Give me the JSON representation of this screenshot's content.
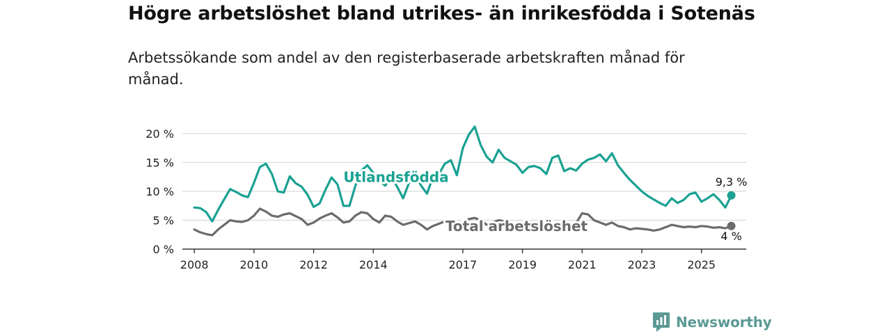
{
  "header": {
    "title": "Högre arbetslöshet bland utrikes- än inrikesfödda i Sotenäs",
    "subtitle": "Arbetssökande som andel av den registerbaserade arbetskraften månad för månad."
  },
  "brand": {
    "name": "Newsworthy",
    "icon": "newsworthy-logo-icon",
    "color": "#5b9a94"
  },
  "chart_data": {
    "type": "line",
    "title": "Högre arbetslöshet bland utrikes- än inrikesfödda i Sotenäs",
    "subtitle": "Arbetssökande som andel av den registerbaserade arbetskraften månad för månad.",
    "xlabel": "",
    "ylabel": "",
    "x_range": [
      2007.6,
      2026.5
    ],
    "ylim": [
      0,
      22
    ],
    "y_ticks": [
      0,
      5,
      10,
      15,
      20
    ],
    "y_tick_labels": [
      "0 %",
      "5 %",
      "10 %",
      "15 %",
      "20 %"
    ],
    "x_ticks": [
      2008,
      2010,
      2012,
      2014,
      2017,
      2019,
      2021,
      2023,
      2025
    ],
    "x_tick_labels": [
      "2008",
      "2010",
      "2012",
      "2014",
      "2017",
      "2019",
      "2021",
      "2023",
      "2025"
    ],
    "grid": true,
    "series": [
      {
        "name": "Utlandsfödda",
        "color": "#1aa192",
        "end_label": "9,3 %",
        "label_at": [
          2013.0,
          12.5
        ],
        "x": [
          2008.0,
          2008.2,
          2008.4,
          2008.6,
          2008.8,
          2009.0,
          2009.2,
          2009.4,
          2009.6,
          2009.8,
          2010.0,
          2010.2,
          2010.4,
          2010.6,
          2010.8,
          2011.0,
          2011.2,
          2011.4,
          2011.6,
          2011.8,
          2012.0,
          2012.2,
          2012.4,
          2012.6,
          2012.8,
          2013.0,
          2013.2,
          2013.4,
          2013.6,
          2013.8,
          2014.0,
          2014.2,
          2014.4,
          2014.6,
          2014.8,
          2015.0,
          2015.2,
          2015.4,
          2015.6,
          2015.8,
          2016.0,
          2016.2,
          2016.4,
          2016.6,
          2016.8,
          2017.0,
          2017.2,
          2017.4,
          2017.6,
          2017.8,
          2018.0,
          2018.2,
          2018.4,
          2018.6,
          2018.8,
          2019.0,
          2019.2,
          2019.4,
          2019.6,
          2019.8,
          2020.0,
          2020.2,
          2020.4,
          2020.6,
          2020.8,
          2021.0,
          2021.2,
          2021.4,
          2021.6,
          2021.8,
          2022.0,
          2022.2,
          2022.4,
          2022.6,
          2022.8,
          2023.0,
          2023.2,
          2023.4,
          2023.6,
          2023.8,
          2024.0,
          2024.2,
          2024.4,
          2024.6,
          2024.8,
          2025.0,
          2025.2,
          2025.4,
          2025.6,
          2025.8,
          2026.0
        ],
        "y": [
          7.2,
          7.1,
          6.4,
          4.8,
          6.8,
          8.6,
          10.4,
          9.9,
          9.3,
          9.0,
          11.5,
          14.2,
          14.8,
          13.0,
          10.0,
          9.8,
          12.6,
          11.4,
          10.8,
          9.4,
          7.3,
          7.9,
          10.3,
          12.4,
          11.2,
          7.5,
          7.5,
          11.0,
          13.6,
          14.5,
          13.2,
          11.8,
          11.0,
          12.5,
          10.8,
          8.8,
          11.5,
          13.0,
          11.0,
          9.6,
          12.5,
          13.0,
          14.8,
          15.4,
          12.8,
          17.5,
          19.8,
          21.2,
          18.0,
          16.0,
          15.0,
          17.2,
          15.8,
          15.2,
          14.6,
          13.2,
          14.2,
          14.4,
          14.0,
          13.0,
          15.8,
          16.2,
          13.5,
          14.0,
          13.6,
          14.8,
          15.5,
          15.8,
          16.4,
          15.2,
          16.6,
          14.5,
          13.2,
          12.0,
          11.0,
          10.0,
          9.2,
          8.6,
          8.0,
          7.5,
          8.8,
          8.0,
          8.5,
          9.5,
          9.8,
          8.2,
          8.8,
          9.5,
          8.5,
          7.2,
          9.3
        ]
      },
      {
        "name": "Total arbetslöshet",
        "color": "#6b6b6b",
        "end_label": "4 %",
        "label_at": [
          2018.8,
          4.0
        ],
        "x": [
          2008.0,
          2008.2,
          2008.4,
          2008.6,
          2008.8,
          2009.0,
          2009.2,
          2009.4,
          2009.6,
          2009.8,
          2010.0,
          2010.2,
          2010.4,
          2010.6,
          2010.8,
          2011.0,
          2011.2,
          2011.4,
          2011.6,
          2011.8,
          2012.0,
          2012.2,
          2012.4,
          2012.6,
          2012.8,
          2013.0,
          2013.2,
          2013.4,
          2013.6,
          2013.8,
          2014.0,
          2014.2,
          2014.4,
          2014.6,
          2014.8,
          2015.0,
          2015.2,
          2015.4,
          2015.6,
          2015.8,
          2016.0,
          2016.2,
          2016.4,
          2016.6,
          2016.8,
          2017.0,
          2017.2,
          2017.4,
          2017.6,
          2017.8,
          2018.0,
          2018.2,
          2018.4,
          2018.6,
          2018.8,
          2019.0,
          2019.2,
          2019.4,
          2019.6,
          2019.8,
          2020.0,
          2020.2,
          2020.4,
          2020.6,
          2020.8,
          2021.0,
          2021.2,
          2021.4,
          2021.6,
          2021.8,
          2022.0,
          2022.2,
          2022.4,
          2022.6,
          2022.8,
          2023.0,
          2023.2,
          2023.4,
          2023.6,
          2023.8,
          2024.0,
          2024.2,
          2024.4,
          2024.6,
          2024.8,
          2025.0,
          2025.2,
          2025.4,
          2025.6,
          2025.8,
          2026.0
        ],
        "y": [
          3.4,
          2.9,
          2.6,
          2.4,
          3.4,
          4.2,
          5.0,
          4.8,
          4.7,
          5.0,
          5.8,
          7.0,
          6.5,
          5.8,
          5.6,
          6.0,
          6.2,
          5.7,
          5.2,
          4.2,
          4.6,
          5.3,
          5.8,
          6.2,
          5.5,
          4.6,
          4.8,
          5.8,
          6.4,
          6.2,
          5.2,
          4.6,
          5.8,
          5.6,
          4.8,
          4.2,
          4.5,
          4.8,
          4.2,
          3.4,
          4.0,
          4.4,
          4.8,
          4.6,
          3.4,
          4.4,
          5.2,
          5.4,
          5.0,
          4.2,
          4.6,
          5.0,
          4.8,
          4.3,
          4.2,
          3.8,
          3.6,
          3.8,
          3.5,
          3.4,
          4.0,
          4.4,
          4.2,
          4.0,
          4.5,
          6.2,
          6.0,
          5.0,
          4.6,
          4.2,
          4.6,
          4.0,
          3.8,
          3.4,
          3.6,
          3.5,
          3.4,
          3.2,
          3.4,
          3.8,
          4.2,
          4.0,
          3.8,
          3.9,
          3.8,
          4.0,
          3.9,
          3.7,
          3.8,
          3.6,
          4.0
        ]
      }
    ]
  }
}
